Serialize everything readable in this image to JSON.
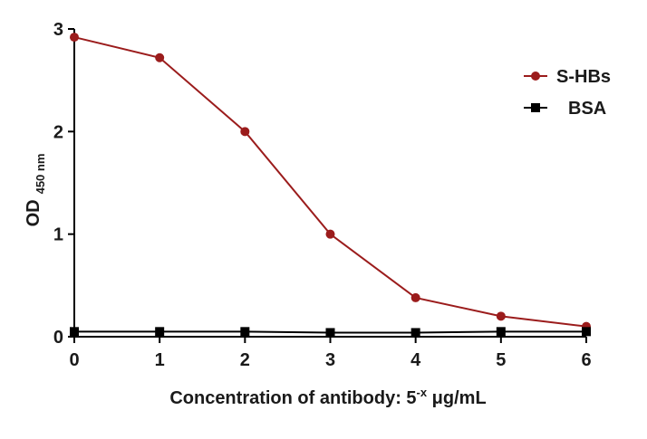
{
  "chart_data": {
    "type": "line",
    "title": "",
    "xlabel": "Concentration of antibody: 5",
    "xlabel_superscript": "-x",
    "xlabel_unit": " μg/mL",
    "ylabel": "OD",
    "ylabel_subscript": "450 nm",
    "xlim": [
      0,
      6
    ],
    "ylim": [
      0,
      3
    ],
    "x_ticks": [
      0,
      1,
      2,
      3,
      4,
      5,
      6
    ],
    "y_ticks": [
      0,
      1,
      2,
      3
    ],
    "x_tick_labels": [
      "0",
      "1",
      "2",
      "3",
      "4",
      "5",
      "6"
    ],
    "y_tick_labels": [
      "0",
      "1",
      "2",
      "3"
    ],
    "grid": false,
    "legend_position": "top-right",
    "x": [
      0,
      1,
      2,
      3,
      4,
      5,
      6
    ],
    "series": [
      {
        "name": "S-HBs",
        "color": "#9b1c1c",
        "marker": "circle",
        "values": [
          2.92,
          2.72,
          2.0,
          1.0,
          0.38,
          0.2,
          0.1
        ]
      },
      {
        "name": "BSA",
        "color": "#000000",
        "marker": "square",
        "values": [
          0.05,
          0.05,
          0.05,
          0.04,
          0.04,
          0.05,
          0.05
        ]
      }
    ]
  }
}
